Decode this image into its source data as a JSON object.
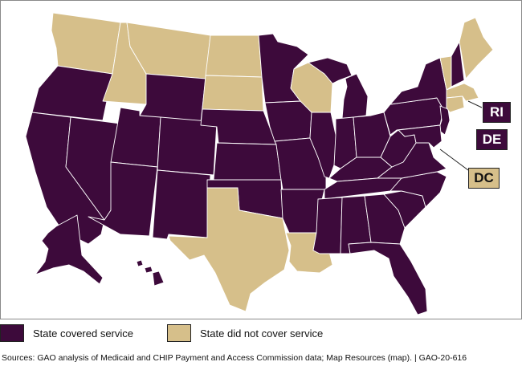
{
  "colors": {
    "covered": "#3d0a3b",
    "not_covered": "#d6bf8a"
  },
  "states": [
    {
      "code": "WA",
      "status": "not_covered"
    },
    {
      "code": "OR",
      "status": "covered"
    },
    {
      "code": "CA",
      "status": "covered"
    },
    {
      "code": "NV",
      "status": "covered"
    },
    {
      "code": "ID",
      "status": "not_covered"
    },
    {
      "code": "MT",
      "status": "not_covered"
    },
    {
      "code": "WY",
      "status": "covered"
    },
    {
      "code": "UT",
      "status": "covered"
    },
    {
      "code": "AZ",
      "status": "covered"
    },
    {
      "code": "CO",
      "status": "covered"
    },
    {
      "code": "NM",
      "status": "covered"
    },
    {
      "code": "ND",
      "status": "not_covered"
    },
    {
      "code": "SD",
      "status": "not_covered"
    },
    {
      "code": "NE",
      "status": "covered"
    },
    {
      "code": "KS",
      "status": "covered"
    },
    {
      "code": "OK",
      "status": "covered"
    },
    {
      "code": "TX",
      "status": "not_covered"
    },
    {
      "code": "MN",
      "status": "covered"
    },
    {
      "code": "IA",
      "status": "covered"
    },
    {
      "code": "MO",
      "status": "covered"
    },
    {
      "code": "AR",
      "status": "covered"
    },
    {
      "code": "LA",
      "status": "not_covered"
    },
    {
      "code": "WI",
      "status": "not_covered"
    },
    {
      "code": "IL",
      "status": "covered"
    },
    {
      "code": "MI",
      "status": "covered"
    },
    {
      "code": "IN",
      "status": "covered"
    },
    {
      "code": "OH",
      "status": "covered"
    },
    {
      "code": "KY",
      "status": "covered"
    },
    {
      "code": "TN",
      "status": "covered"
    },
    {
      "code": "MS",
      "status": "covered"
    },
    {
      "code": "AL",
      "status": "covered"
    },
    {
      "code": "GA",
      "status": "covered"
    },
    {
      "code": "FL",
      "status": "covered"
    },
    {
      "code": "SC",
      "status": "covered"
    },
    {
      "code": "NC",
      "status": "covered"
    },
    {
      "code": "VA",
      "status": "covered"
    },
    {
      "code": "WV",
      "status": "covered"
    },
    {
      "code": "PA",
      "status": "covered"
    },
    {
      "code": "NY",
      "status": "covered"
    },
    {
      "code": "NJ",
      "status": "covered"
    },
    {
      "code": "MD",
      "status": "covered"
    },
    {
      "code": "VT",
      "status": "not_covered"
    },
    {
      "code": "NH",
      "status": "covered"
    },
    {
      "code": "ME",
      "status": "not_covered"
    },
    {
      "code": "MA",
      "status": "not_covered"
    },
    {
      "code": "CT",
      "status": "not_covered"
    },
    {
      "code": "AK",
      "status": "covered"
    },
    {
      "code": "HI",
      "status": "covered"
    }
  ],
  "callouts": {
    "ri": {
      "label": "RI",
      "status": "covered"
    },
    "de": {
      "label": "DE",
      "status": "covered"
    },
    "dc": {
      "label": "DC",
      "status": "not_covered"
    }
  },
  "legend": {
    "covered_label": "State covered service",
    "not_covered_label": "State did not cover service"
  },
  "source": "Sources: GAO analysis of Medicaid and CHIP Payment and Access Commission data; Map Resources (map).  |  GAO-20-616"
}
